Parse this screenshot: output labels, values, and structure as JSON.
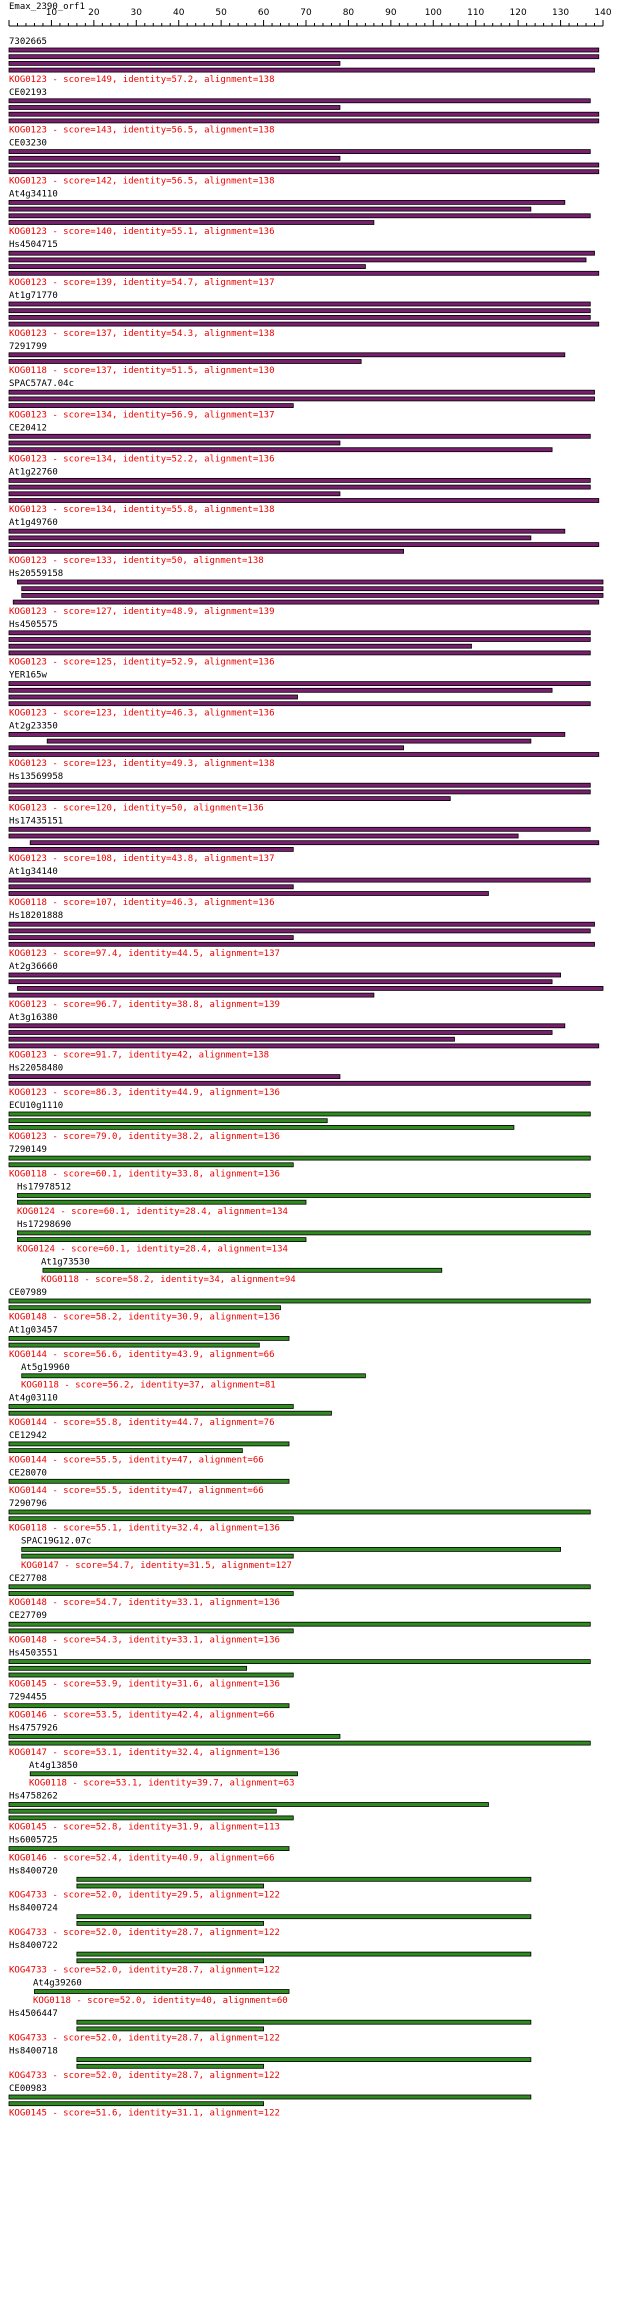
{
  "title": "Emax_2390_orf1",
  "colors": {
    "purple": "#7a1f6e",
    "green": "#2f8a1f",
    "bar_outline": "#000000",
    "info_text": "#ee0000",
    "label_text": "#000000"
  },
  "chart_data": {
    "type": "bar",
    "title": "Emax_2390_orf1",
    "xlim": [
      0,
      140
    ],
    "ticks": [
      10,
      20,
      30,
      40,
      50,
      60,
      70,
      80,
      90,
      100,
      110,
      120,
      130,
      140
    ],
    "hits": [
      {
        "name": "7302665",
        "info": "KOG0123 - score=149, identity=57.2, alignment=138",
        "color": "purple",
        "indent": 0,
        "bars": [
          [
            0,
            139
          ],
          [
            0,
            139
          ],
          [
            0,
            78
          ],
          [
            0,
            138
          ]
        ]
      },
      {
        "name": "CE02193",
        "info": "KOG0123 - score=143, identity=56.5, alignment=138",
        "color": "purple",
        "indent": 0,
        "bars": [
          [
            0,
            137
          ],
          [
            0,
            78
          ],
          [
            0,
            139
          ],
          [
            0,
            139
          ]
        ]
      },
      {
        "name": "CE03230",
        "info": "KOG0123 - score=142, identity=56.5, alignment=138",
        "color": "purple",
        "indent": 0,
        "bars": [
          [
            0,
            137
          ],
          [
            0,
            78
          ],
          [
            0,
            139
          ],
          [
            0,
            139
          ]
        ]
      },
      {
        "name": "At4g34110",
        "info": "KOG0123 - score=140, identity=55.1, alignment=136",
        "color": "purple",
        "indent": 0,
        "bars": [
          [
            0,
            131
          ],
          [
            0,
            123
          ],
          [
            0,
            137
          ],
          [
            0,
            86
          ]
        ]
      },
      {
        "name": "Hs4504715",
        "info": "KOG0123 - score=139, identity=54.7, alignment=137",
        "color": "purple",
        "indent": 0,
        "bars": [
          [
            0,
            138
          ],
          [
            0,
            136
          ],
          [
            0,
            84
          ],
          [
            0,
            139
          ]
        ]
      },
      {
        "name": "At1g71770",
        "info": "KOG0123 - score=137, identity=54.3, alignment=138",
        "color": "purple",
        "indent": 0,
        "bars": [
          [
            0,
            137
          ],
          [
            0,
            137
          ],
          [
            0,
            137
          ],
          [
            0,
            139
          ]
        ]
      },
      {
        "name": "7291799",
        "info": "KOG0118 - score=137, identity=51.5, alignment=130",
        "color": "purple",
        "indent": 0,
        "bars": [
          [
            0,
            131
          ],
          [
            0,
            83
          ]
        ]
      },
      {
        "name": "SPAC57A7.04c",
        "info": "KOG0123 - score=134, identity=56.9, alignment=137",
        "color": "purple",
        "indent": 0,
        "bars": [
          [
            0,
            138
          ],
          [
            0,
            138
          ],
          [
            0,
            67
          ]
        ]
      },
      {
        "name": "CE20412",
        "info": "KOG0123 - score=134, identity=52.2, alignment=136",
        "color": "purple",
        "indent": 0,
        "bars": [
          [
            0,
            137
          ],
          [
            0,
            78
          ],
          [
            0,
            128
          ]
        ]
      },
      {
        "name": "At1g22760",
        "info": "KOG0123 - score=134, identity=55.8, alignment=138",
        "color": "purple",
        "indent": 0,
        "bars": [
          [
            0,
            137
          ],
          [
            0,
            137
          ],
          [
            0,
            78
          ],
          [
            0,
            139
          ]
        ]
      },
      {
        "name": "At1g49760",
        "info": "KOG0123 - score=133, identity=50, alignment=138",
        "color": "purple",
        "indent": 0,
        "bars": [
          [
            0,
            131
          ],
          [
            0,
            123
          ],
          [
            0,
            139
          ],
          [
            0,
            93
          ]
        ]
      },
      {
        "name": "Hs20559158",
        "info": "KOG0123 - score=127, identity=48.9, alignment=139",
        "color": "purple",
        "indent": 0,
        "bars": [
          [
            2,
            140
          ],
          [
            3,
            140
          ],
          [
            3,
            140
          ],
          [
            1,
            139
          ]
        ]
      },
      {
        "name": "Hs4505575",
        "info": "KOG0123 - score=125, identity=52.9, alignment=136",
        "color": "purple",
        "indent": 0,
        "bars": [
          [
            0,
            137
          ],
          [
            0,
            137
          ],
          [
            0,
            109
          ],
          [
            0,
            137
          ]
        ]
      },
      {
        "name": "YER165w",
        "info": "KOG0123 - score=123, identity=46.3, alignment=136",
        "color": "purple",
        "indent": 0,
        "bars": [
          [
            0,
            137
          ],
          [
            0,
            128
          ],
          [
            0,
            68
          ],
          [
            0,
            137
          ]
        ]
      },
      {
        "name": "At2g23350",
        "info": "KOG0123 - score=123, identity=49.3, alignment=138",
        "color": "purple",
        "indent": 0,
        "bars": [
          [
            0,
            131
          ],
          [
            9,
            123
          ],
          [
            0,
            93
          ],
          [
            0,
            139
          ]
        ]
      },
      {
        "name": "Hs13569958",
        "info": "KOG0123 - score=120, identity=50, alignment=136",
        "color": "purple",
        "indent": 0,
        "bars": [
          [
            0,
            137
          ],
          [
            0,
            137
          ],
          [
            0,
            104
          ]
        ]
      },
      {
        "name": "Hs17435151",
        "info": "KOG0123 - score=108, identity=43.8, alignment=137",
        "color": "purple",
        "indent": 0,
        "bars": [
          [
            0,
            137
          ],
          [
            0,
            120
          ],
          [
            5,
            139
          ],
          [
            0,
            67
          ]
        ]
      },
      {
        "name": "At1g34140",
        "info": "KOG0118 - score=107, identity=46.3, alignment=136",
        "color": "purple",
        "indent": 0,
        "bars": [
          [
            0,
            137
          ],
          [
            0,
            67
          ],
          [
            0,
            113
          ]
        ]
      },
      {
        "name": "Hs18201888",
        "info": "KOG0123 - score=97.4, identity=44.5, alignment=137",
        "color": "purple",
        "indent": 0,
        "bars": [
          [
            0,
            138
          ],
          [
            0,
            137
          ],
          [
            0,
            67
          ],
          [
            0,
            138
          ]
        ]
      },
      {
        "name": "At2g36660",
        "info": "KOG0123 - score=96.7, identity=38.8, alignment=139",
        "color": "purple",
        "indent": 0,
        "bars": [
          [
            0,
            130
          ],
          [
            0,
            128
          ],
          [
            2,
            140
          ],
          [
            0,
            86
          ]
        ]
      },
      {
        "name": "At3g16380",
        "info": "KOG0123 - score=91.7, identity=42, alignment=138",
        "color": "purple",
        "indent": 0,
        "bars": [
          [
            0,
            131
          ],
          [
            0,
            128
          ],
          [
            0,
            105
          ],
          [
            0,
            139
          ]
        ]
      },
      {
        "name": "Hs22058480",
        "info": "KOG0123 - score=86.3, identity=44.9, alignment=136",
        "color": "purple",
        "indent": 0,
        "bars": [
          [
            0,
            78
          ],
          [
            0,
            137
          ]
        ]
      },
      {
        "name": "ECU10g1110",
        "info": "KOG0123 - score=79.0, identity=38.2, alignment=136",
        "color": "green",
        "indent": 0,
        "bars": [
          [
            0,
            137
          ],
          [
            0,
            75
          ],
          [
            0,
            119
          ]
        ]
      },
      {
        "name": "7290149",
        "info": "KOG0118 - score=60.1, identity=33.8, alignment=136",
        "color": "green",
        "indent": 0,
        "bars": [
          [
            0,
            137
          ],
          [
            0,
            67
          ]
        ]
      },
      {
        "name": "Hs17978512",
        "info": "KOG0124 - score=60.1, identity=28.4, alignment=134",
        "color": "green",
        "indent": 2,
        "bars": [
          [
            2,
            137
          ],
          [
            2,
            70
          ]
        ]
      },
      {
        "name": "Hs17298690",
        "info": "KOG0124 - score=60.1, identity=28.4, alignment=134",
        "color": "green",
        "indent": 2,
        "bars": [
          [
            2,
            137
          ],
          [
            2,
            70
          ]
        ]
      },
      {
        "name": "At1g73530",
        "info": "KOG0118 - score=58.2, identity=34, alignment=94",
        "color": "green",
        "indent": 8,
        "bars": [
          [
            8,
            102
          ]
        ]
      },
      {
        "name": "CE07989",
        "info": "KOG0148 - score=58.2, identity=30.9, alignment=136",
        "color": "green",
        "indent": 0,
        "bars": [
          [
            0,
            137
          ],
          [
            0,
            64
          ]
        ]
      },
      {
        "name": "At1g03457",
        "info": "KOG0144 - score=56.6, identity=43.9, alignment=66",
        "color": "green",
        "indent": 0,
        "bars": [
          [
            0,
            66
          ],
          [
            0,
            59
          ]
        ]
      },
      {
        "name": "At5g19960",
        "info": "KOG0118 - score=56.2, identity=37, alignment=81",
        "color": "green",
        "indent": 3,
        "bars": [
          [
            3,
            84
          ]
        ]
      },
      {
        "name": "At4g03110",
        "info": "KOG0144 - score=55.8, identity=44.7, alignment=76",
        "color": "green",
        "indent": 0,
        "bars": [
          [
            0,
            67
          ],
          [
            0,
            76
          ]
        ]
      },
      {
        "name": "CE12942",
        "info": "KOG0144 - score=55.5, identity=47, alignment=66",
        "color": "green",
        "indent": 0,
        "bars": [
          [
            0,
            66
          ],
          [
            0,
            55
          ]
        ]
      },
      {
        "name": "CE28070",
        "info": "KOG0144 - score=55.5, identity=47, alignment=66",
        "color": "green",
        "indent": 0,
        "bars": [
          [
            0,
            66
          ]
        ]
      },
      {
        "name": "7290796",
        "info": "KOG0118 - score=55.1, identity=32.4, alignment=136",
        "color": "green",
        "indent": 0,
        "bars": [
          [
            0,
            137
          ],
          [
            0,
            67
          ]
        ]
      },
      {
        "name": "SPAC19G12.07c",
        "info": "KOG0147 - score=54.7, identity=31.5, alignment=127",
        "color": "green",
        "indent": 3,
        "bars": [
          [
            3,
            130
          ],
          [
            3,
            67
          ]
        ]
      },
      {
        "name": "CE27708",
        "info": "KOG0148 - score=54.7, identity=33.1, alignment=136",
        "color": "green",
        "indent": 0,
        "bars": [
          [
            0,
            137
          ],
          [
            0,
            67
          ]
        ]
      },
      {
        "name": "CE27709",
        "info": "KOG0148 - score=54.3, identity=33.1, alignment=136",
        "color": "green",
        "indent": 0,
        "bars": [
          [
            0,
            137
          ],
          [
            0,
            67
          ]
        ]
      },
      {
        "name": "Hs4503551",
        "info": "KOG0145 - score=53.9, identity=31.6, alignment=136",
        "color": "green",
        "indent": 0,
        "bars": [
          [
            0,
            137
          ],
          [
            0,
            56
          ],
          [
            0,
            67
          ]
        ]
      },
      {
        "name": "7294455",
        "info": "KOG0146 - score=53.5, identity=42.4, alignment=66",
        "color": "green",
        "indent": 0,
        "bars": [
          [
            0,
            66
          ]
        ]
      },
      {
        "name": "Hs4757926",
        "info": "KOG0147 - score=53.1, identity=32.4, alignment=136",
        "color": "green",
        "indent": 0,
        "bars": [
          [
            0,
            78
          ],
          [
            0,
            137
          ]
        ]
      },
      {
        "name": "At4g13850",
        "info": "KOG0118 - score=53.1, identity=39.7, alignment=63",
        "color": "green",
        "indent": 5,
        "bars": [
          [
            5,
            68
          ]
        ]
      },
      {
        "name": "Hs4758262",
        "info": "KOG0145 - score=52.8, identity=31.9, alignment=113",
        "color": "green",
        "indent": 0,
        "bars": [
          [
            0,
            113
          ],
          [
            0,
            63
          ],
          [
            0,
            67
          ]
        ]
      },
      {
        "name": "Hs6005725",
        "info": "KOG0146 - score=52.4, identity=40.9, alignment=66",
        "color": "green",
        "indent": 0,
        "bars": [
          [
            0,
            66
          ]
        ]
      },
      {
        "name": "Hs8400720",
        "info": "KOG4733 - score=52.0, identity=29.5, alignment=122",
        "color": "green",
        "indent": 0,
        "bars": [
          [
            16,
            123
          ],
          [
            16,
            60
          ]
        ]
      },
      {
        "name": "Hs8400724",
        "info": "KOG4733 - score=52.0, identity=28.7, alignment=122",
        "color": "green",
        "indent": 0,
        "bars": [
          [
            16,
            123
          ],
          [
            16,
            60
          ]
        ]
      },
      {
        "name": "Hs8400722",
        "info": "KOG4733 - score=52.0, identity=28.7, alignment=122",
        "color": "green",
        "indent": 0,
        "bars": [
          [
            16,
            123
          ],
          [
            16,
            60
          ]
        ]
      },
      {
        "name": "At4g39260",
        "info": "KOG0118 - score=52.0, identity=40, alignment=60",
        "color": "green",
        "indent": 6,
        "bars": [
          [
            6,
            66
          ]
        ]
      },
      {
        "name": "Hs4506447",
        "info": "KOG4733 - score=52.0, identity=28.7, alignment=122",
        "color": "green",
        "indent": 0,
        "bars": [
          [
            16,
            123
          ],
          [
            16,
            60
          ]
        ]
      },
      {
        "name": "Hs8400718",
        "info": "KOG4733 - score=52.0, identity=28.7, alignment=122",
        "color": "green",
        "indent": 0,
        "bars": [
          [
            16,
            123
          ],
          [
            16,
            60
          ]
        ]
      },
      {
        "name": "CE00983",
        "info": "KOG0145 - score=51.6, identity=31.1, alignment=122",
        "color": "green",
        "indent": 0,
        "bars": [
          [
            0,
            123
          ],
          [
            0,
            60
          ]
        ]
      }
    ]
  }
}
